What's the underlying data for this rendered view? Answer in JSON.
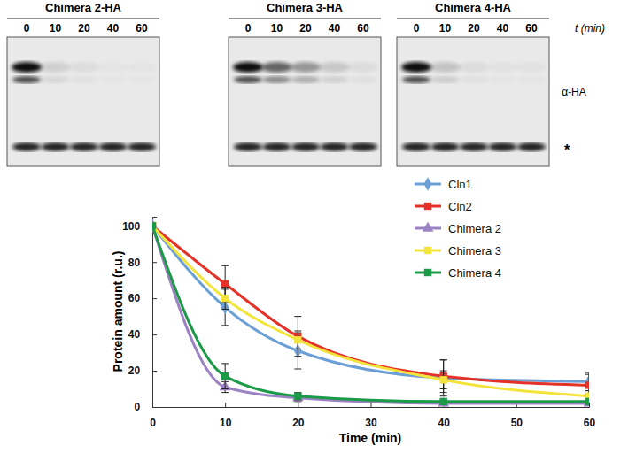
{
  "chart_data": {
    "type": "line",
    "x_label": "Time (min)",
    "y_label": "Protein amount (r.u.)",
    "x": [
      0,
      10,
      20,
      40,
      60
    ],
    "xlim": [
      0,
      60
    ],
    "xticks": [
      0,
      10,
      20,
      30,
      40,
      50,
      60
    ],
    "ylim": [
      0,
      105
    ],
    "yticks": [
      0,
      20,
      40,
      60,
      80,
      100
    ],
    "legend": "top-right",
    "line_style": "smooth",
    "series": [
      {
        "name": "Cln1",
        "color": "#6c9fd6",
        "marker": "diamond",
        "values": [
          100,
          55,
          31,
          16,
          14
        ],
        "errors": [
          0,
          10,
          10,
          10,
          5
        ]
      },
      {
        "name": "Cln2",
        "color": "#e53228",
        "marker": "square",
        "values": [
          100,
          68,
          39,
          17,
          12
        ],
        "errors": [
          0,
          10,
          11,
          9,
          6
        ]
      },
      {
        "name": "Chimera 2",
        "color": "#9b82c3",
        "marker": "triangle",
        "values": [
          100,
          11,
          5,
          2,
          2
        ],
        "errors": [
          0,
          3,
          2,
          1,
          1
        ]
      },
      {
        "name": "Chimera 3",
        "color": "#f3e43a",
        "marker": "square",
        "values": [
          100,
          60,
          37,
          15,
          6
        ],
        "errors": [
          0,
          6,
          5,
          5,
          3
        ]
      },
      {
        "name": "Chimera 4",
        "color": "#1b9a48",
        "marker": "square",
        "values": [
          100,
          17,
          6,
          3,
          3
        ],
        "errors": [
          0,
          7,
          2,
          1,
          1
        ]
      }
    ]
  },
  "blots": {
    "panels": [
      {
        "title": "Chimera 2-HA",
        "lanes": [
          0,
          10,
          20,
          40,
          60
        ]
      },
      {
        "title": "Chimera 3-HA",
        "lanes": [
          0,
          10,
          20,
          40,
          60
        ]
      },
      {
        "title": "Chimera 4-HA",
        "lanes": [
          0,
          10,
          20,
          40,
          60
        ]
      }
    ],
    "time_label": "t (min)",
    "band_label": "α-HA",
    "loading_label": "*"
  }
}
